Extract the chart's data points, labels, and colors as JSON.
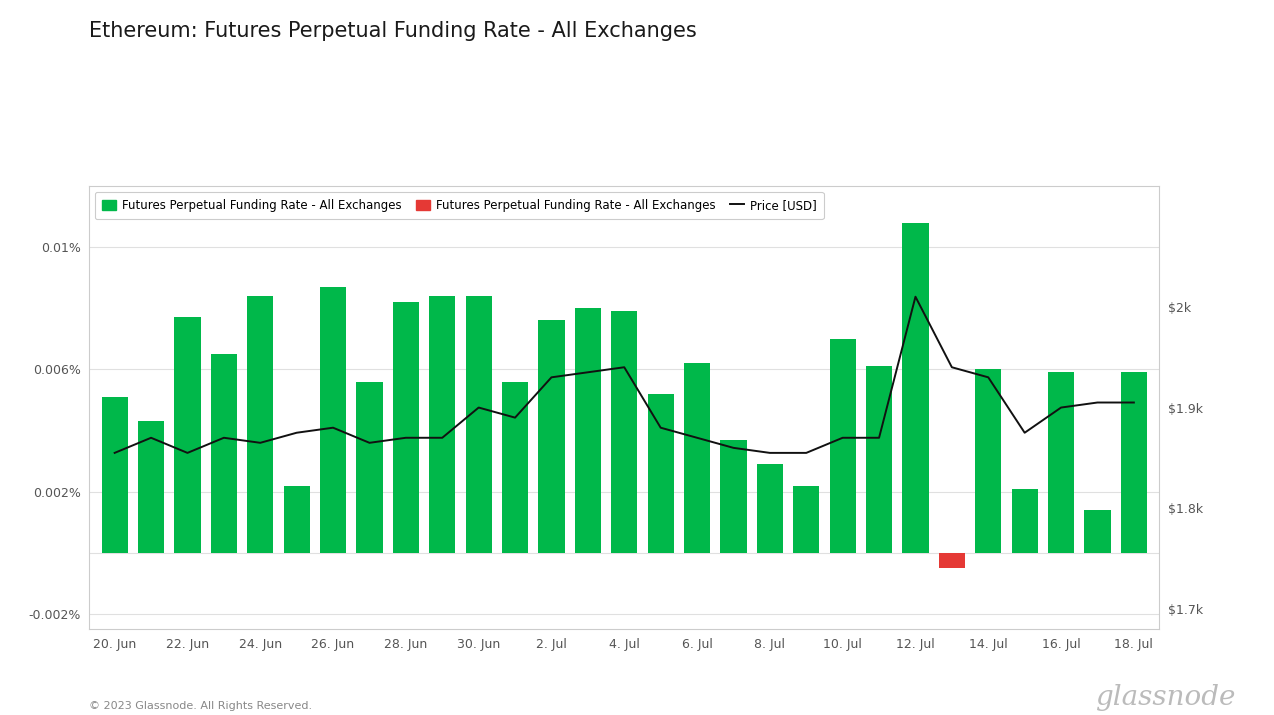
{
  "title": "Ethereum: Futures Perpetual Funding Rate - All Exchanges",
  "bar_values": [
    0.0051,
    0.0043,
    0.0077,
    0.0065,
    0.0084,
    0.0022,
    0.0087,
    0.0056,
    0.0082,
    0.0084,
    0.0084,
    0.0056,
    0.0076,
    0.008,
    0.0079,
    0.0052,
    0.0062,
    0.0037,
    0.0029,
    0.0022,
    0.007,
    0.0061,
    0.0108,
    -0.0005,
    0.006,
    0.0021,
    0.0059,
    0.0014,
    0.0059
  ],
  "price_line": [
    1855,
    1870,
    1855,
    1870,
    1865,
    1875,
    1880,
    1865,
    1870,
    1870,
    1900,
    1890,
    1930,
    1935,
    1940,
    1880,
    1870,
    1860,
    1855,
    1855,
    1870,
    1870,
    2010,
    1940,
    1930,
    1875,
    1900,
    1905,
    1905
  ],
  "bar_colors_green": "#00b84a",
  "bar_color_red": "#e53935",
  "ylim_left": [
    -0.0025,
    0.012
  ],
  "ylim_right": [
    1680,
    2120
  ],
  "yticks_left": [
    -0.002,
    0.0,
    0.002,
    0.006,
    0.01
  ],
  "ytick_labels_left": [
    "-0.002%",
    "",
    "0.002%",
    "0.006%",
    "0.01%"
  ],
  "yticks_right": [
    1700,
    1800,
    1900,
    2000
  ],
  "ytick_labels_right": [
    "$1.7k",
    "$1.8k",
    "$1.9k",
    "$2k"
  ],
  "tick_positions": [
    0,
    2,
    4,
    6,
    8,
    10,
    12,
    14,
    16,
    18,
    20,
    22,
    24,
    26,
    28
  ],
  "tick_labels": [
    "20. Jun",
    "22. Jun",
    "24. Jun",
    "26. Jun",
    "28. Jun",
    "30. Jun",
    "2. Jul",
    "4. Jul",
    "6. Jul",
    "8. Jul",
    "10. Jul",
    "12. Jul",
    "14. Jul",
    "16. Jul",
    "18. Jul"
  ],
  "legend_entries": [
    {
      "label": "Futures Perpetual Funding Rate - All Exchanges",
      "color": "#00b84a",
      "type": "bar"
    },
    {
      "label": "Futures Perpetual Funding Rate - All Exchanges",
      "color": "#e53935",
      "type": "bar"
    },
    {
      "label": "Price [USD]",
      "color": "#111111",
      "type": "line"
    }
  ],
  "footer_text": "© 2023 Glassnode. All Rights Reserved.",
  "watermark": "glassnode",
  "background_color": "#ffffff",
  "plot_bg_color": "#ffffff",
  "grid_color": "#e0e0e0",
  "title_fontsize": 15,
  "border_color": "#cccccc"
}
